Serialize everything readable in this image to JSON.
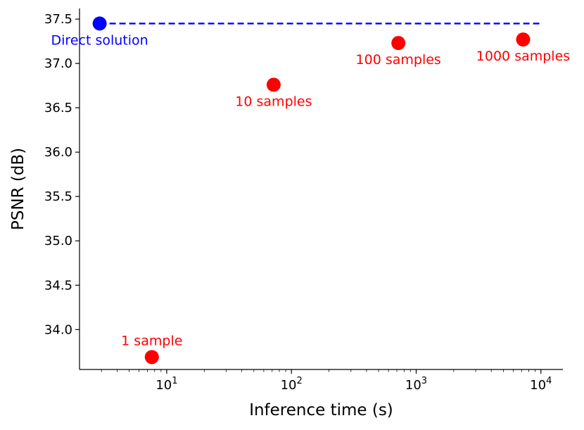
{
  "chart_data": {
    "type": "scatter",
    "title": "",
    "xlabel": "Inference time (s)",
    "ylabel": "PSNR (dB)",
    "xscale": "log",
    "xlim": [
      2.0,
      15000
    ],
    "ylim": [
      33.55,
      37.62
    ],
    "x_ticks": [
      {
        "value": 10,
        "base": "10",
        "exp": "1"
      },
      {
        "value": 100,
        "base": "10",
        "exp": "2"
      },
      {
        "value": 1000,
        "base": "10",
        "exp": "3"
      },
      {
        "value": 10000,
        "base": "10",
        "exp": "4"
      }
    ],
    "y_ticks": [
      "34.0",
      "34.5",
      "35.0",
      "35.5",
      "36.0",
      "36.5",
      "37.0",
      "37.5"
    ],
    "spines": "left and bottom only",
    "grid": false,
    "series": [
      {
        "color": "#ff0000",
        "points": [
          {
            "x": 7.6,
            "y": 33.69,
            "label": "1 sample",
            "label_pos": "above"
          },
          {
            "x": 72,
            "y": 36.76,
            "label": "10 samples",
            "label_pos": "below"
          },
          {
            "x": 720,
            "y": 37.23,
            "label": "100 samples",
            "label_pos": "below"
          },
          {
            "x": 7200,
            "y": 37.27,
            "label": "1000 samples",
            "label_pos": "below"
          }
        ]
      },
      {
        "color": "#0000ff",
        "points": [
          {
            "x": 2.9,
            "y": 37.45,
            "label": "Direct solution",
            "label_pos": "below"
          }
        ]
      }
    ],
    "reference_line": {
      "y": 37.45,
      "x_from": 2.9,
      "x_to": 10000,
      "style": "dashed",
      "color": "#0000ff"
    }
  }
}
